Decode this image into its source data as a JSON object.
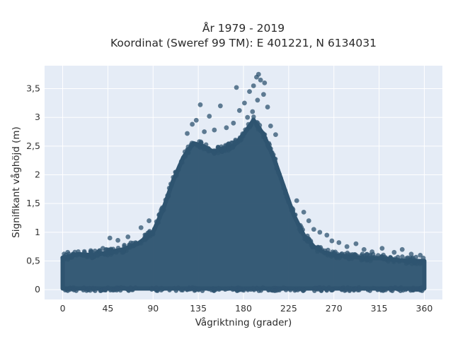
{
  "chart_data": {
    "type": "scatter",
    "title": "År 1979 - 2019",
    "subtitle": "Koordinat (Sweref 99 TM): E 401221, N 6134031",
    "xlabel": "Vågriktning (grader)",
    "ylabel": "Signifikant våghöjd (m)",
    "xlim": [
      -18,
      378
    ],
    "ylim": [
      -0.17,
      3.9
    ],
    "x_ticks": [
      "0",
      "45",
      "90",
      "135",
      "180",
      "225",
      "270",
      "315",
      "360"
    ],
    "y_ticks": [
      "0",
      "0,5",
      "1",
      "1,5",
      "2",
      "2,5",
      "3",
      "3,5"
    ],
    "grid": true,
    "marker_color": "#2f5470",
    "plot_background": "#e5ecf6",
    "envelope": {
      "direction": [
        0,
        15,
        30,
        45,
        60,
        75,
        90,
        100,
        110,
        120,
        130,
        140,
        150,
        160,
        170,
        180,
        190,
        200,
        210,
        220,
        230,
        240,
        250,
        260,
        270,
        285,
        300,
        315,
        330,
        345,
        360
      ],
      "upper_height": [
        0.55,
        0.62,
        0.6,
        0.65,
        0.7,
        0.8,
        1.0,
        1.4,
        1.9,
        2.3,
        2.55,
        2.5,
        2.4,
        2.45,
        2.5,
        2.7,
        2.95,
        2.7,
        2.3,
        1.8,
        1.3,
        0.95,
        0.75,
        0.65,
        0.6,
        0.58,
        0.55,
        0.55,
        0.52,
        0.5,
        0.5
      ]
    },
    "outliers": [
      {
        "x": 195,
        "y": 3.75
      },
      {
        "x": 193,
        "y": 3.7
      },
      {
        "x": 197,
        "y": 3.65
      },
      {
        "x": 201,
        "y": 3.6
      },
      {
        "x": 190,
        "y": 3.55
      },
      {
        "x": 173,
        "y": 3.52
      },
      {
        "x": 186,
        "y": 3.45
      },
      {
        "x": 200,
        "y": 3.4
      },
      {
        "x": 194,
        "y": 3.3
      },
      {
        "x": 181,
        "y": 3.25
      },
      {
        "x": 137,
        "y": 3.22
      },
      {
        "x": 157,
        "y": 3.2
      },
      {
        "x": 204,
        "y": 3.18
      },
      {
        "x": 176,
        "y": 3.12
      },
      {
        "x": 189,
        "y": 3.1
      },
      {
        "x": 146,
        "y": 3.02
      },
      {
        "x": 184,
        "y": 3.0
      },
      {
        "x": 133,
        "y": 2.95
      },
      {
        "x": 170,
        "y": 2.9
      },
      {
        "x": 207,
        "y": 2.85
      },
      {
        "x": 129,
        "y": 2.88
      },
      {
        "x": 163,
        "y": 2.82
      },
      {
        "x": 151,
        "y": 2.78
      },
      {
        "x": 141,
        "y": 2.75
      },
      {
        "x": 212,
        "y": 2.7
      },
      {
        "x": 124,
        "y": 2.72
      },
      {
        "x": 5,
        "y": 0.65
      },
      {
        "x": 14,
        "y": 0.6
      },
      {
        "x": 28,
        "y": 0.68
      },
      {
        "x": 40,
        "y": 0.72
      },
      {
        "x": 47,
        "y": 0.9
      },
      {
        "x": 55,
        "y": 0.86
      },
      {
        "x": 65,
        "y": 0.92
      },
      {
        "x": 78,
        "y": 1.08
      },
      {
        "x": 86,
        "y": 1.2
      },
      {
        "x": 96,
        "y": 1.3
      },
      {
        "x": 233,
        "y": 1.55
      },
      {
        "x": 240,
        "y": 1.35
      },
      {
        "x": 245,
        "y": 1.2
      },
      {
        "x": 250,
        "y": 1.05
      },
      {
        "x": 256,
        "y": 1.0
      },
      {
        "x": 263,
        "y": 0.95
      },
      {
        "x": 268,
        "y": 0.85
      },
      {
        "x": 275,
        "y": 0.82
      },
      {
        "x": 283,
        "y": 0.75
      },
      {
        "x": 292,
        "y": 0.8
      },
      {
        "x": 300,
        "y": 0.7
      },
      {
        "x": 308,
        "y": 0.66
      },
      {
        "x": 318,
        "y": 0.72
      },
      {
        "x": 330,
        "y": 0.65
      },
      {
        "x": 338,
        "y": 0.7
      },
      {
        "x": 347,
        "y": 0.62
      },
      {
        "x": 356,
        "y": 0.6
      },
      {
        "x": 359,
        "y": 0.55
      },
      {
        "x": 1,
        "y": 0.52
      },
      {
        "x": 9,
        "y": 0.58
      }
    ]
  }
}
